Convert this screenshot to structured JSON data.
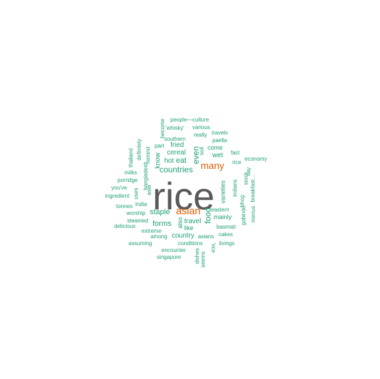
{
  "colors": {
    "primary": "#595959",
    "secondary": "#d95f02",
    "tertiary": "#1b9e77"
  },
  "words": [
    {
      "text": "rice",
      "color": "primary"
    },
    {
      "text": "asian",
      "color": "secondary"
    },
    {
      "text": "many",
      "color": "secondary"
    },
    {
      "text": "countries",
      "color": "tertiary"
    },
    {
      "text": "food",
      "color": "tertiary"
    },
    {
      "text": "even",
      "color": "tertiary"
    },
    {
      "text": "eat",
      "color": "tertiary"
    },
    {
      "text": "hot",
      "color": "tertiary"
    },
    {
      "text": "staple",
      "color": "tertiary"
    },
    {
      "text": "forms",
      "color": "tertiary"
    },
    {
      "text": "country",
      "color": "tertiary"
    },
    {
      "text": "travel",
      "color": "tertiary"
    },
    {
      "text": "cereal",
      "color": "tertiary"
    },
    {
      "text": "fried",
      "color": "tertiary"
    },
    {
      "text": "know",
      "color": "tertiary"
    },
    {
      "text": "come",
      "color": "tertiary"
    },
    {
      "text": "wet",
      "color": "tertiary"
    },
    {
      "text": "mainly",
      "color": "tertiary"
    },
    {
      "text": "varieties",
      "color": "tertiary"
    },
    {
      "text": "like",
      "color": "tertiary"
    },
    {
      "text": "also",
      "color": "tertiary"
    },
    {
      "text": "eastern",
      "color": "tertiary"
    },
    {
      "text": "people—culture",
      "color": "tertiary"
    },
    {
      "text": "become",
      "color": "tertiary"
    },
    {
      "text": "various",
      "color": "tertiary"
    },
    {
      "text": "'whisky'",
      "color": "tertiary"
    },
    {
      "text": "really",
      "color": "tertiary"
    },
    {
      "text": "travels",
      "color": "tertiary"
    },
    {
      "text": "southern",
      "color": "tertiary"
    },
    {
      "text": "paella",
      "color": "tertiary"
    },
    {
      "text": "part",
      "color": "tertiary"
    },
    {
      "text": "soil",
      "color": "tertiary"
    },
    {
      "text": "definitely",
      "color": "tertiary"
    },
    {
      "text": "remind",
      "color": "tertiary"
    },
    {
      "text": "thailand",
      "color": "tertiary"
    },
    {
      "text": "fact",
      "color": "tertiary"
    },
    {
      "text": "economy",
      "color": "tertiary"
    },
    {
      "text": "say",
      "color": "tertiary"
    },
    {
      "text": "rice",
      "color": "tertiary"
    },
    {
      "text": "milks",
      "color": "tertiary"
    },
    {
      "text": "bangladesh",
      "color": "tertiary"
    },
    {
      "text": "stock",
      "color": "tertiary"
    },
    {
      "text": "porridge",
      "color": "tertiary"
    },
    {
      "text": "indians",
      "color": "tertiary"
    },
    {
      "text": "breakfast…",
      "color": "tertiary"
    },
    {
      "text": "you've",
      "color": "tertiary"
    },
    {
      "text": "uses",
      "color": "tertiary"
    },
    {
      "text": "asia",
      "color": "tertiary"
    },
    {
      "text": "bhog",
      "color": "tertiary"
    },
    {
      "text": "ingredient",
      "color": "tertiary"
    },
    {
      "text": "tonnes",
      "color": "tertiary"
    },
    {
      "text": "india",
      "color": "tertiary"
    },
    {
      "text": "gobindo",
      "color": "tertiary"
    },
    {
      "text": "menus",
      "color": "tertiary"
    },
    {
      "text": "worship",
      "color": "tertiary"
    },
    {
      "text": "steamed",
      "color": "tertiary"
    },
    {
      "text": "basmati",
      "color": "tertiary"
    },
    {
      "text": "delicious",
      "color": "tertiary"
    },
    {
      "text": "extreme",
      "color": "tertiary"
    },
    {
      "text": "cakes",
      "color": "tertiary"
    },
    {
      "text": "among",
      "color": "tertiary"
    },
    {
      "text": "asians",
      "color": "tertiary"
    },
    {
      "text": "assuming",
      "color": "tertiary"
    },
    {
      "text": "conditions",
      "color": "tertiary"
    },
    {
      "text": "'rice",
      "color": "tertiary"
    },
    {
      "text": "livings",
      "color": "tertiary"
    },
    {
      "text": "encounter",
      "color": "tertiary"
    },
    {
      "text": "dishes",
      "color": "tertiary"
    },
    {
      "text": "seems",
      "color": "tertiary"
    },
    {
      "text": "singapore",
      "color": "tertiary"
    }
  ]
}
